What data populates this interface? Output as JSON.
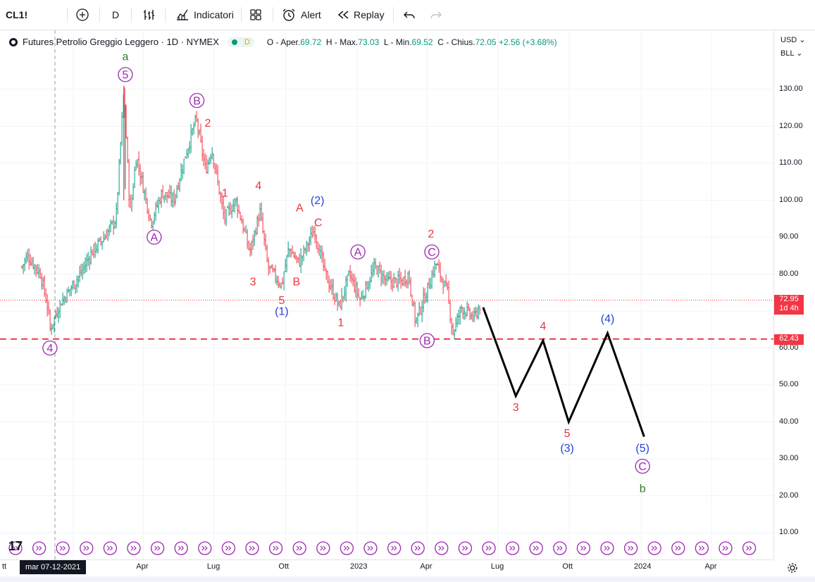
{
  "toolbar": {
    "symbol": "CL1!",
    "interval": "D",
    "indicators_label": "Indicatori",
    "alert_label": "Alert",
    "replay_label": "Replay"
  },
  "legend": {
    "title": "Futures Petrolio Greggio Leggero · 1D · NYMEX",
    "badge": "D",
    "o_label": "O - Aper.",
    "o_value": "69.72",
    "h_label": "H - Max.",
    "h_value": "73.03",
    "l_label": "L - Min.",
    "l_value": "69.52",
    "c_label": "C - Chius.",
    "c_value": "72.05",
    "change": "+2.56 (+3.68%)"
  },
  "price_scale": {
    "currency": "USD",
    "unit": "BLL",
    "labels": [
      "130.00",
      "120.00",
      "110.00",
      "100.00",
      "90.00",
      "80.00",
      "70.00",
      "60.00",
      "50.00",
      "40.00",
      "30.00",
      "20.00",
      "10.00"
    ],
    "last_price": "72.95",
    "countdown": "1d 4h",
    "level_price": "62.43"
  },
  "time_scale": {
    "labels": [
      "tt",
      "Apr",
      "Lug",
      "Ott",
      "2023",
      "Apr",
      "Lug",
      "Ott",
      "2024",
      "Apr"
    ],
    "crosshair_date": "mar 07-12-2021"
  },
  "colors": {
    "up": "#089981",
    "down": "#f23645",
    "wave_red": "#e8343c",
    "wave_purple": "#9c27b0",
    "wave_blue": "#2a41d8",
    "wave_green": "#2e7d32",
    "last_price": "#f23645"
  },
  "chart_data": {
    "type": "candlestick",
    "title": "Futures Petrolio Greggio Leggero · 1D · NYMEX",
    "ylim": [
      5,
      142
    ],
    "grid": true,
    "price_path": [
      {
        "date": "2021-10-27",
        "price": 82
      },
      {
        "date": "2021-11-03",
        "price": 85
      },
      {
        "date": "2021-11-10",
        "price": 83
      },
      {
        "date": "2021-11-20",
        "price": 80
      },
      {
        "date": "2021-11-30",
        "price": 70
      },
      {
        "date": "2021-12-02",
        "price": 65
      },
      {
        "date": "2021-12-15",
        "price": 72
      },
      {
        "date": "2021-12-28",
        "price": 76
      },
      {
        "date": "2022-01-10",
        "price": 80
      },
      {
        "date": "2022-01-25",
        "price": 86
      },
      {
        "date": "2022-02-10",
        "price": 90
      },
      {
        "date": "2022-02-25",
        "price": 95
      },
      {
        "date": "2022-03-07",
        "price": 130
      },
      {
        "date": "2022-03-15",
        "price": 96
      },
      {
        "date": "2022-03-23",
        "price": 112
      },
      {
        "date": "2022-04-11",
        "price": 94
      },
      {
        "date": "2022-04-25",
        "price": 102
      },
      {
        "date": "2022-05-10",
        "price": 100
      },
      {
        "date": "2022-05-25",
        "price": 112
      },
      {
        "date": "2022-06-08",
        "price": 122
      },
      {
        "date": "2022-06-20",
        "price": 108
      },
      {
        "date": "2022-06-28",
        "price": 114
      },
      {
        "date": "2022-07-14",
        "price": 95
      },
      {
        "date": "2022-07-29",
        "price": 100
      },
      {
        "date": "2022-08-16",
        "price": 86
      },
      {
        "date": "2022-08-29",
        "price": 97
      },
      {
        "date": "2022-09-08",
        "price": 82
      },
      {
        "date": "2022-09-26",
        "price": 77
      },
      {
        "date": "2022-10-05",
        "price": 87
      },
      {
        "date": "2022-10-18",
        "price": 83
      },
      {
        "date": "2022-11-07",
        "price": 92
      },
      {
        "date": "2022-11-21",
        "price": 80
      },
      {
        "date": "2022-12-09",
        "price": 71
      },
      {
        "date": "2022-12-22",
        "price": 80
      },
      {
        "date": "2023-01-05",
        "price": 73
      },
      {
        "date": "2023-01-24",
        "price": 82
      },
      {
        "date": "2023-02-08",
        "price": 78
      },
      {
        "date": "2023-02-28",
        "price": 78
      },
      {
        "date": "2023-03-08",
        "price": 80
      },
      {
        "date": "2023-03-17",
        "price": 67
      },
      {
        "date": "2023-03-31",
        "price": 75
      },
      {
        "date": "2023-04-12",
        "price": 83
      },
      {
        "date": "2023-04-27",
        "price": 75
      },
      {
        "date": "2023-05-04",
        "price": 64
      },
      {
        "date": "2023-05-15",
        "price": 71
      },
      {
        "date": "2023-05-31",
        "price": 68
      },
      {
        "date": "2023-06-09",
        "price": 72.05
      }
    ],
    "last_price": 72.95,
    "horizontal_level": 62.43,
    "projection": [
      {
        "date": "2023-06-12",
        "price": 71
      },
      {
        "date": "2023-07-24",
        "price": 47
      },
      {
        "date": "2023-08-28",
        "price": 62
      },
      {
        "date": "2023-09-30",
        "price": 40
      },
      {
        "date": "2023-11-19",
        "price": 64
      },
      {
        "date": "2024-01-05",
        "price": 36
      }
    ],
    "wave_labels": [
      {
        "text": "4",
        "style": "circle",
        "color": "purple",
        "date": "2021-12-02",
        "price": 60
      },
      {
        "text": "a",
        "style": "plain",
        "color": "green",
        "date": "2022-03-09",
        "price": 139
      },
      {
        "text": "5",
        "style": "circle",
        "color": "purple",
        "date": "2022-03-09",
        "price": 134
      },
      {
        "text": "A",
        "style": "circle",
        "color": "purple",
        "date": "2022-04-15",
        "price": 90
      },
      {
        "text": "B",
        "style": "circle",
        "color": "purple",
        "date": "2022-06-09",
        "price": 127
      },
      {
        "text": "2",
        "style": "plain",
        "color": "red",
        "date": "2022-06-23",
        "price": 121
      },
      {
        "text": "1",
        "style": "plain",
        "color": "red",
        "date": "2022-07-15",
        "price": 102
      },
      {
        "text": "4",
        "style": "plain",
        "color": "red",
        "date": "2022-08-27",
        "price": 104
      },
      {
        "text": "3",
        "style": "plain",
        "color": "red",
        "date": "2022-08-20",
        "price": 78
      },
      {
        "text": "5",
        "style": "plain",
        "color": "red",
        "date": "2022-09-26",
        "price": 73
      },
      {
        "text": "(1)",
        "style": "plain",
        "color": "blue",
        "date": "2022-09-26",
        "price": 70
      },
      {
        "text": "B",
        "style": "plain",
        "color": "red",
        "date": "2022-10-15",
        "price": 78
      },
      {
        "text": "A",
        "style": "plain",
        "color": "red",
        "date": "2022-10-19",
        "price": 98
      },
      {
        "text": "(2)",
        "style": "plain",
        "color": "blue",
        "date": "2022-11-11",
        "price": 100
      },
      {
        "text": "C",
        "style": "plain",
        "color": "red",
        "date": "2022-11-12",
        "price": 94
      },
      {
        "text": "1",
        "style": "plain",
        "color": "red",
        "date": "2022-12-11",
        "price": 67
      },
      {
        "text": "A",
        "style": "circle",
        "color": "purple",
        "date": "2023-01-02",
        "price": 86
      },
      {
        "text": "B",
        "style": "circle",
        "color": "purple",
        "date": "2023-04-01",
        "price": 62
      },
      {
        "text": "2",
        "style": "plain",
        "color": "red",
        "date": "2023-04-06",
        "price": 91
      },
      {
        "text": "C",
        "style": "circle",
        "color": "purple",
        "date": "2023-04-07",
        "price": 86
      },
      {
        "text": "4",
        "style": "plain",
        "color": "red",
        "date": "2023-08-28",
        "price": 66
      },
      {
        "text": "3",
        "style": "plain",
        "color": "red",
        "date": "2023-07-24",
        "price": 44
      },
      {
        "text": "(4)",
        "style": "plain",
        "color": "blue",
        "date": "2023-11-19",
        "price": 68
      },
      {
        "text": "5",
        "style": "plain",
        "color": "red",
        "date": "2023-09-28",
        "price": 37
      },
      {
        "text": "(3)",
        "style": "plain",
        "color": "blue",
        "date": "2023-09-28",
        "price": 33
      },
      {
        "text": "(5)",
        "style": "plain",
        "color": "blue",
        "date": "2024-01-03",
        "price": 33
      },
      {
        "text": "C",
        "style": "circle",
        "color": "purple",
        "date": "2024-01-03",
        "price": 28
      },
      {
        "text": "b",
        "style": "plain",
        "color": "green",
        "date": "2024-01-03",
        "price": 22
      }
    ]
  }
}
